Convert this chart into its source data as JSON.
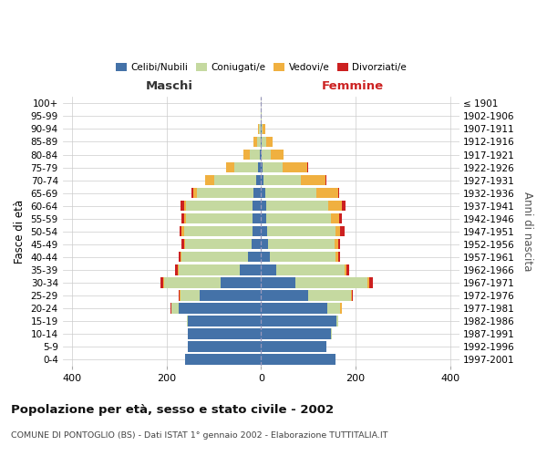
{
  "age_groups": [
    "0-4",
    "5-9",
    "10-14",
    "15-19",
    "20-24",
    "25-29",
    "30-34",
    "35-39",
    "40-44",
    "45-49",
    "50-54",
    "55-59",
    "60-64",
    "65-69",
    "70-74",
    "75-79",
    "80-84",
    "85-89",
    "90-94",
    "95-99",
    "100+"
  ],
  "birth_years": [
    "1997-2001",
    "1992-1996",
    "1987-1991",
    "1982-1986",
    "1977-1981",
    "1972-1976",
    "1967-1971",
    "1962-1966",
    "1957-1961",
    "1952-1956",
    "1947-1951",
    "1942-1946",
    "1937-1941",
    "1932-1936",
    "1927-1931",
    "1922-1926",
    "1917-1921",
    "1912-1916",
    "1907-1911",
    "1902-1906",
    "≤ 1901"
  ],
  "maschi": {
    "celibi": [
      160,
      155,
      155,
      155,
      175,
      130,
      85,
      45,
      28,
      20,
      18,
      18,
      18,
      16,
      10,
      6,
      3,
      1,
      1,
      0,
      0
    ],
    "coniugati": [
      0,
      0,
      0,
      2,
      15,
      40,
      120,
      130,
      140,
      140,
      145,
      140,
      140,
      120,
      90,
      50,
      20,
      8,
      3,
      1,
      0
    ],
    "vedovi": [
      0,
      0,
      0,
      0,
      0,
      2,
      2,
      2,
      2,
      3,
      5,
      5,
      4,
      8,
      18,
      18,
      15,
      8,
      2,
      0,
      0
    ],
    "divorziati": [
      0,
      0,
      0,
      0,
      2,
      2,
      5,
      5,
      5,
      5,
      5,
      5,
      8,
      3,
      0,
      0,
      0,
      0,
      0,
      0,
      0
    ]
  },
  "femmine": {
    "nubili": [
      158,
      138,
      148,
      160,
      140,
      100,
      72,
      32,
      18,
      14,
      12,
      10,
      10,
      8,
      5,
      3,
      2,
      2,
      1,
      0,
      0
    ],
    "coniugate": [
      0,
      0,
      2,
      4,
      28,
      90,
      152,
      145,
      140,
      142,
      145,
      138,
      132,
      108,
      80,
      42,
      18,
      8,
      3,
      1,
      0
    ],
    "vedove": [
      0,
      0,
      0,
      0,
      2,
      2,
      4,
      4,
      5,
      7,
      11,
      18,
      28,
      48,
      52,
      52,
      28,
      14,
      5,
      1,
      0
    ],
    "divorziate": [
      0,
      0,
      0,
      0,
      0,
      2,
      8,
      5,
      5,
      4,
      8,
      5,
      8,
      2,
      2,
      2,
      0,
      0,
      0,
      0,
      0
    ]
  },
  "colors": {
    "celibi_nubili": "#4472a8",
    "coniugati": "#c5d9a0",
    "vedovi": "#f0b040",
    "divorziati": "#cc2020"
  },
  "xlim": 420,
  "xticks": [
    -400,
    -200,
    0,
    200,
    400
  ],
  "title": "Popolazione per età, sesso e stato civile - 2002",
  "subtitle": "COMUNE DI PONTOGLIO (BS) - Dati ISTAT 1° gennaio 2002 - Elaborazione TUTTITALIA.IT",
  "ylabel_left": "Fasce di età",
  "ylabel_right": "Anni di nascita",
  "maschi_label": "Maschi",
  "femmine_label": "Femmine",
  "background_color": "#ffffff",
  "grid_color": "#cccccc",
  "legend": [
    "Celibi/Nubili",
    "Coniugati/e",
    "Vedovi/e",
    "Divorziati/e"
  ]
}
